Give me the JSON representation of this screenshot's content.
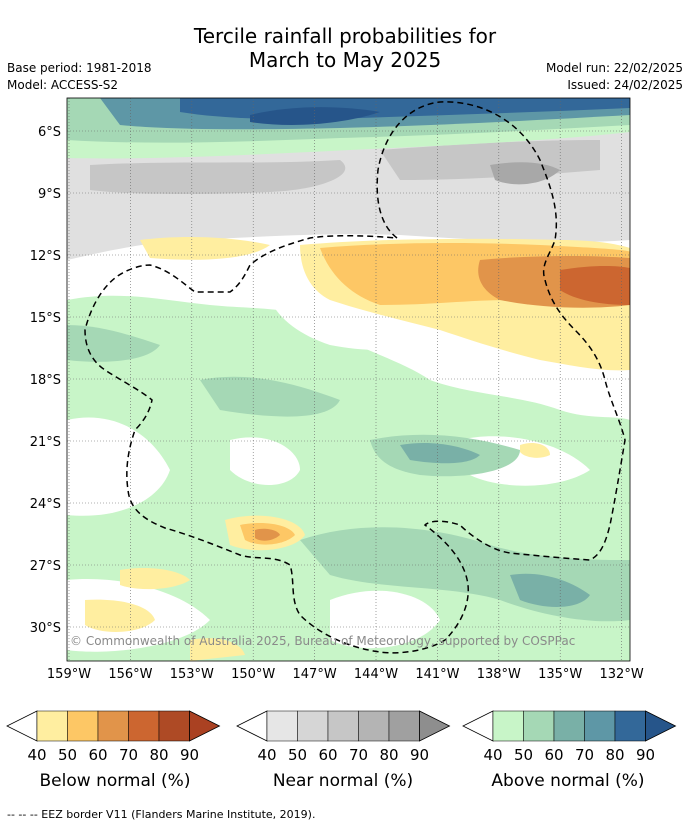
{
  "title_line1": "Tercile rainfall probabilities for",
  "title_line2": "March to May 2025",
  "base_period": "Base period: 1981-2018",
  "model": "Model: ACCESS-S2",
  "model_run": "Model run: 22/02/2025",
  "issued": "Issued: 24/02/2025",
  "copyright": "© Commonwealth of Australia 2025, Bureau of Meteorology, supported by COSPPac",
  "footer": "--  --  -- EEZ border V11 (Flanders Marine Institute, 2019).",
  "chart_data": {
    "type": "heatmap",
    "lat_ticks": [
      "6°S",
      "9°S",
      "12°S",
      "15°S",
      "18°S",
      "21°S",
      "24°S",
      "27°S",
      "30°S"
    ],
    "lon_ticks": [
      "159°W",
      "156°W",
      "153°W",
      "150°W",
      "147°W",
      "144°W",
      "141°W",
      "138°W",
      "135°W",
      "132°W"
    ],
    "grid": true,
    "colorbars": [
      {
        "label": "Below normal (%)",
        "ticks": [
          "40",
          "50",
          "60",
          "70",
          "80",
          "90"
        ],
        "colors": [
          "#ffeea0",
          "#fdc765",
          "#e1944a",
          "#cc6630",
          "#ae4a25",
          "#aa4122"
        ]
      },
      {
        "label": "Near normal (%)",
        "ticks": [
          "40",
          "50",
          "60",
          "70",
          "80",
          "90"
        ],
        "colors": [
          "#e6e6e6",
          "#d6d6d6",
          "#c6c6c6",
          "#b4b4b4",
          "#a0a0a0",
          "#8e8e8e"
        ]
      },
      {
        "label": "Above normal (%)",
        "ticks": [
          "40",
          "50",
          "60",
          "70",
          "80",
          "90"
        ],
        "colors": [
          "#c8f5c8",
          "#a5d8b5",
          "#79b0a7",
          "#5e97a6",
          "#336899",
          "#26558a"
        ]
      }
    ],
    "regions": [
      {
        "category": "above",
        "level": "40-50",
        "area": "6°S–5°S band, west to east"
      },
      {
        "category": "above",
        "level": "50-90",
        "area": "north of 7°S"
      },
      {
        "category": "near",
        "level": "40-60",
        "area": "7°S–11°S band"
      },
      {
        "category": "below",
        "level": "40-80",
        "area": "12°S–17°S, 147°W–132°W"
      },
      {
        "category": "above",
        "level": "40-60",
        "area": "15°S–30°S"
      }
    ]
  }
}
